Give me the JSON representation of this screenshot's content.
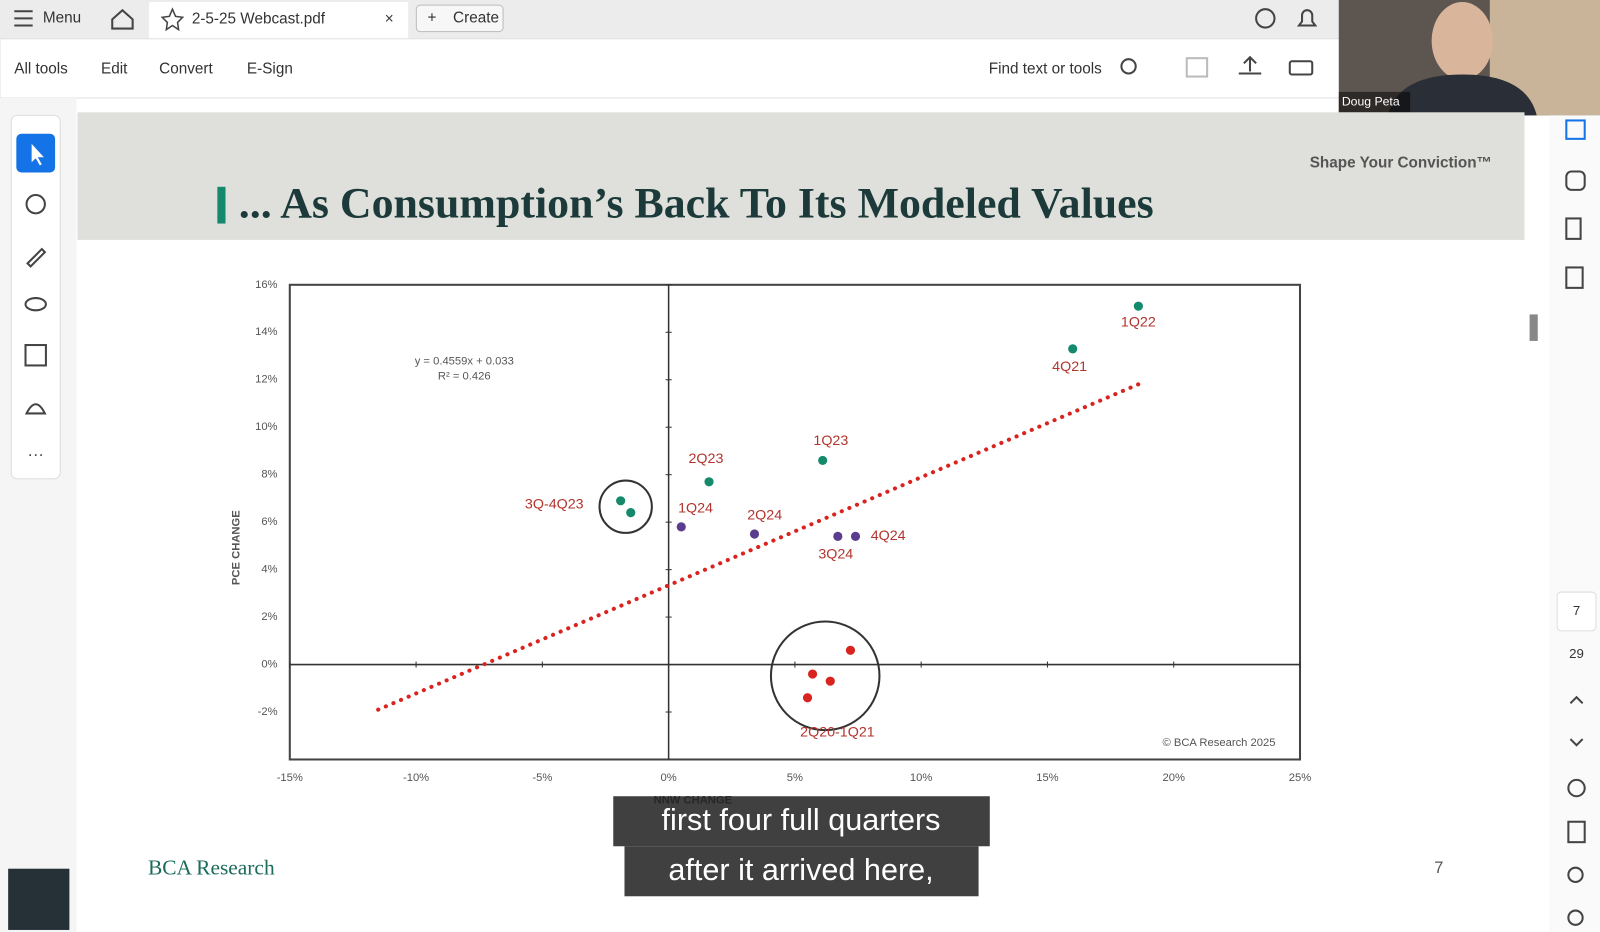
{
  "tabs": {
    "menu": "Menu",
    "file": "2-5-25 Webcast.pdf",
    "create": "Create"
  },
  "toolbar": {
    "items": [
      "All tools",
      "Edit",
      "Convert",
      "E-Sign"
    ],
    "search": "Find text or tools"
  },
  "video": {
    "name": "Doug Peta"
  },
  "slide": {
    "tagline": "Shape Your Conviction™",
    "title": "... As Consumption’s Back To Its Modeled Values",
    "footer": "BCA Research",
    "page": "7"
  },
  "side_panel": {
    "page": "7",
    "total": "29"
  },
  "captions": [
    "first four full quarters",
    "after it arrived here,"
  ],
  "chart_data": {
    "type": "scatter",
    "x_label": "NNW CHANGE",
    "y_label": "PCE CHANGE",
    "annotations": [
      "y = 0.4559x + 0.033",
      "R² = 0.426"
    ],
    "source": "© BCA Research 2025",
    "xlim": [
      -15,
      25
    ],
    "ylim": [
      -4,
      16
    ],
    "xticks": [
      {
        "value": -15,
        "label": "-15%"
      },
      {
        "value": -10,
        "label": "-10%"
      },
      {
        "value": -5,
        "label": "-5%"
      },
      {
        "value": 0,
        "label": "0%"
      },
      {
        "value": 5,
        "label": "5%"
      },
      {
        "value": 10,
        "label": "10%"
      },
      {
        "value": 15,
        "label": "15%"
      },
      {
        "value": 20,
        "label": "20%"
      },
      {
        "value": 25,
        "label": "25%"
      }
    ],
    "yticks": [
      {
        "value": -2,
        "label": "-2%"
      },
      {
        "value": 0,
        "label": "0%"
      },
      {
        "value": 2,
        "label": "2%"
      },
      {
        "value": 4,
        "label": "4%"
      },
      {
        "value": 6,
        "label": "6%"
      },
      {
        "value": 8,
        "label": "8%"
      },
      {
        "value": 10,
        "label": "10%"
      },
      {
        "value": 12,
        "label": "12%"
      },
      {
        "value": 14,
        "label": "14%"
      },
      {
        "value": 16,
        "label": "16%"
      }
    ],
    "trendline": {
      "color": "#d9231f",
      "x": [
        -11.5,
        18.8
      ],
      "y": [
        -1.9,
        11.9
      ]
    },
    "groups": [
      {
        "label": "1Q22",
        "color": "#14896b",
        "x": [
          18.6
        ],
        "y": [
          15.1
        ],
        "circled": false
      },
      {
        "label": "4Q21",
        "color": "#14896b",
        "x": [
          16.0
        ],
        "y": [
          13.3
        ],
        "circled": false
      },
      {
        "label": "1Q23",
        "color": "#14896b",
        "x": [
          6.1
        ],
        "y": [
          8.6
        ],
        "circled": false
      },
      {
        "label": "2Q23",
        "color": "#14896b",
        "x": [
          1.6
        ],
        "y": [
          7.7
        ],
        "circled": false
      },
      {
        "label": "3Q-4Q23",
        "color": "#14896b",
        "x": [
          -1.9,
          -1.5
        ],
        "y": [
          6.9,
          6.4
        ],
        "circled": true
      },
      {
        "label": "1Q24",
        "color": "#5b3d8f",
        "x": [
          0.5
        ],
        "y": [
          5.8
        ],
        "circled": false
      },
      {
        "label": "2Q24",
        "color": "#5b3d8f",
        "x": [
          3.4
        ],
        "y": [
          5.5
        ],
        "circled": false
      },
      {
        "label": "3Q24",
        "color": "#5b3d8f",
        "x": [
          6.7
        ],
        "y": [
          5.4
        ],
        "circled": false
      },
      {
        "label": "4Q24",
        "color": "#5b3d8f",
        "x": [
          7.4
        ],
        "y": [
          5.4
        ],
        "circled": false
      },
      {
        "label": "2Q20-1Q21",
        "color": "#d9231f",
        "x": [
          7.2,
          5.7,
          6.4,
          5.5
        ],
        "y": [
          0.6,
          -0.4,
          -0.7,
          -1.4
        ],
        "circled": true
      }
    ]
  }
}
